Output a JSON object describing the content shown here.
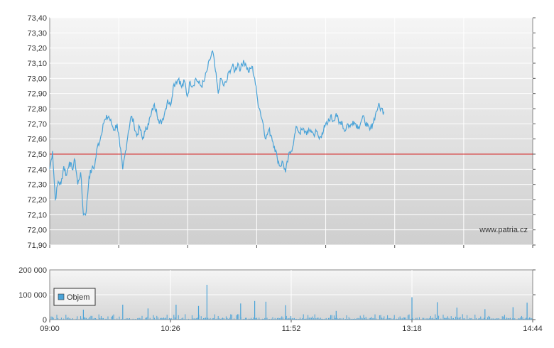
{
  "chart_data": [
    {
      "type": "line",
      "title": "",
      "xlabel": "",
      "ylabel": "",
      "ylim": [
        71.9,
        73.4
      ],
      "y_ticks": [
        "71.90",
        "72.00",
        "72.10",
        "72.20",
        "72.30",
        "72.40",
        "72.50",
        "72.60",
        "72.70",
        "72.80",
        "72.90",
        "73.00",
        "73.10",
        "73.20",
        "73.30",
        "73.40"
      ],
      "y_tick_labels": [
        "71,90",
        "72,00",
        "72,10",
        "72,20",
        "72,30",
        "72,40",
        "72,50",
        "72,60",
        "72,70",
        "72,80",
        "72,90",
        "73,00",
        "73,10",
        "73,20",
        "73,30",
        "73,40"
      ],
      "reference_line": 72.5,
      "grid": true,
      "watermark": "www.patria.cz",
      "series": [
        {
          "color": "#4aa3d8",
          "points": [
            [
              "09:00",
              72.4
            ],
            [
              "09:02",
              72.52
            ],
            [
              "09:04",
              72.2
            ],
            [
              "09:06",
              72.32
            ],
            [
              "09:08",
              72.3
            ],
            [
              "09:10",
              72.42
            ],
            [
              "09:12",
              72.36
            ],
            [
              "09:14",
              72.45
            ],
            [
              "09:16",
              72.4
            ],
            [
              "09:18",
              72.46
            ],
            [
              "09:20",
              72.3
            ],
            [
              "09:22",
              72.38
            ],
            [
              "09:24",
              72.1
            ],
            [
              "09:26",
              72.12
            ],
            [
              "09:28",
              72.35
            ],
            [
              "09:30",
              72.4
            ],
            [
              "09:32",
              72.42
            ],
            [
              "09:34",
              72.55
            ],
            [
              "09:36",
              72.6
            ],
            [
              "09:38",
              72.7
            ],
            [
              "09:40",
              72.73
            ],
            [
              "09:42",
              72.75
            ],
            [
              "09:44",
              72.7
            ],
            [
              "09:46",
              72.66
            ],
            [
              "09:48",
              72.7
            ],
            [
              "09:50",
              72.55
            ],
            [
              "09:52",
              72.4
            ],
            [
              "09:54",
              72.52
            ],
            [
              "09:56",
              72.65
            ],
            [
              "09:58",
              72.75
            ],
            [
              "10:00",
              72.7
            ],
            [
              "10:02",
              72.62
            ],
            [
              "10:04",
              72.68
            ],
            [
              "10:06",
              72.6
            ],
            [
              "10:08",
              72.65
            ],
            [
              "10:10",
              72.7
            ],
            [
              "10:12",
              72.75
            ],
            [
              "10:14",
              72.82
            ],
            [
              "10:16",
              72.8
            ],
            [
              "10:18",
              72.7
            ],
            [
              "10:20",
              72.72
            ],
            [
              "10:22",
              72.78
            ],
            [
              "10:24",
              72.86
            ],
            [
              "10:26",
              72.82
            ],
            [
              "10:28",
              72.95
            ],
            [
              "10:30",
              72.98
            ],
            [
              "10:32",
              73.0
            ],
            [
              "10:34",
              72.94
            ],
            [
              "10:36",
              72.98
            ],
            [
              "10:38",
              72.88
            ],
            [
              "10:40",
              72.98
            ],
            [
              "10:42",
              72.95
            ],
            [
              "10:44",
              73.0
            ],
            [
              "10:46",
              72.97
            ],
            [
              "10:48",
              72.95
            ],
            [
              "10:50",
              72.98
            ],
            [
              "10:52",
              73.05
            ],
            [
              "10:54",
              73.12
            ],
            [
              "10:56",
              73.18
            ],
            [
              "10:58",
              73.05
            ],
            [
              "11:00",
              72.9
            ],
            [
              "11:02",
              73.0
            ],
            [
              "11:04",
              72.95
            ],
            [
              "11:06",
              72.98
            ],
            [
              "11:08",
              73.05
            ],
            [
              "11:10",
              73.08
            ],
            [
              "11:12",
              73.05
            ],
            [
              "11:14",
              73.1
            ],
            [
              "11:16",
              73.06
            ],
            [
              "11:18",
              73.12
            ],
            [
              "11:20",
              73.08
            ],
            [
              "11:22",
              73.04
            ],
            [
              "11:24",
              73.08
            ],
            [
              "11:26",
              73.0
            ],
            [
              "11:28",
              72.86
            ],
            [
              "11:30",
              72.78
            ],
            [
              "11:32",
              72.7
            ],
            [
              "11:34",
              72.6
            ],
            [
              "11:36",
              72.66
            ],
            [
              "11:38",
              72.62
            ],
            [
              "11:40",
              72.55
            ],
            [
              "11:42",
              72.48
            ],
            [
              "11:44",
              72.42
            ],
            [
              "11:46",
              72.45
            ],
            [
              "11:48",
              72.38
            ],
            [
              "11:50",
              72.48
            ],
            [
              "11:52",
              72.52
            ],
            [
              "11:54",
              72.6
            ],
            [
              "11:56",
              72.68
            ],
            [
              "11:58",
              72.64
            ],
            [
              "12:00",
              72.66
            ],
            [
              "12:02",
              72.65
            ],
            [
              "12:04",
              72.64
            ],
            [
              "12:06",
              72.66
            ],
            [
              "12:08",
              72.63
            ],
            [
              "12:10",
              72.65
            ],
            [
              "12:12",
              72.6
            ],
            [
              "12:14",
              72.64
            ],
            [
              "12:16",
              72.68
            ],
            [
              "12:18",
              72.7
            ],
            [
              "12:20",
              72.75
            ],
            [
              "12:22",
              72.72
            ],
            [
              "12:24",
              72.77
            ],
            [
              "12:26",
              72.7
            ],
            [
              "12:28",
              72.72
            ],
            [
              "12:30",
              72.65
            ],
            [
              "12:32",
              72.7
            ],
            [
              "12:34",
              72.68
            ],
            [
              "12:36",
              72.72
            ],
            [
              "12:38",
              72.7
            ],
            [
              "12:40",
              72.68
            ],
            [
              "12:42",
              72.72
            ],
            [
              "12:44",
              72.74
            ],
            [
              "12:46",
              72.68
            ],
            [
              "12:48",
              72.66
            ],
            [
              "12:50",
              72.7
            ],
            [
              "12:52",
              72.76
            ],
            [
              "12:54",
              72.82
            ],
            [
              "12:56",
              72.8
            ],
            [
              "12:58",
              72.78
            ]
          ]
        }
      ]
    },
    {
      "type": "bar",
      "title": "",
      "xlabel": "",
      "ylabel": "",
      "ylim": [
        0,
        200000
      ],
      "y_tick_labels": [
        "0",
        "100 000",
        "200 000"
      ],
      "x_tick_labels": [
        "09:00",
        "10:26",
        "11:52",
        "13:18",
        "14:44"
      ],
      "legend": {
        "position": "left",
        "label": "Objem",
        "color": "#4aa3d8"
      },
      "grid": true,
      "series": [
        {
          "name": "Objem",
          "color": "#4aa3d8",
          "spikes": [
            [
              "09:24",
              40000
            ],
            [
              "09:52",
              60000
            ],
            [
              "10:10",
              45000
            ],
            [
              "10:30",
              60000
            ],
            [
              "10:46",
              55000
            ],
            [
              "10:52",
              140000
            ],
            [
              "11:16",
              65000
            ],
            [
              "11:26",
              75000
            ],
            [
              "11:34",
              72000
            ],
            [
              "11:48",
              58000
            ],
            [
              "12:24",
              35000
            ],
            [
              "13:18",
              90000
            ],
            [
              "13:36",
              70000
            ],
            [
              "13:50",
              48000
            ],
            [
              "14:10",
              42000
            ],
            [
              "14:30",
              50000
            ],
            [
              "14:40",
              68000
            ]
          ]
        }
      ]
    }
  ]
}
